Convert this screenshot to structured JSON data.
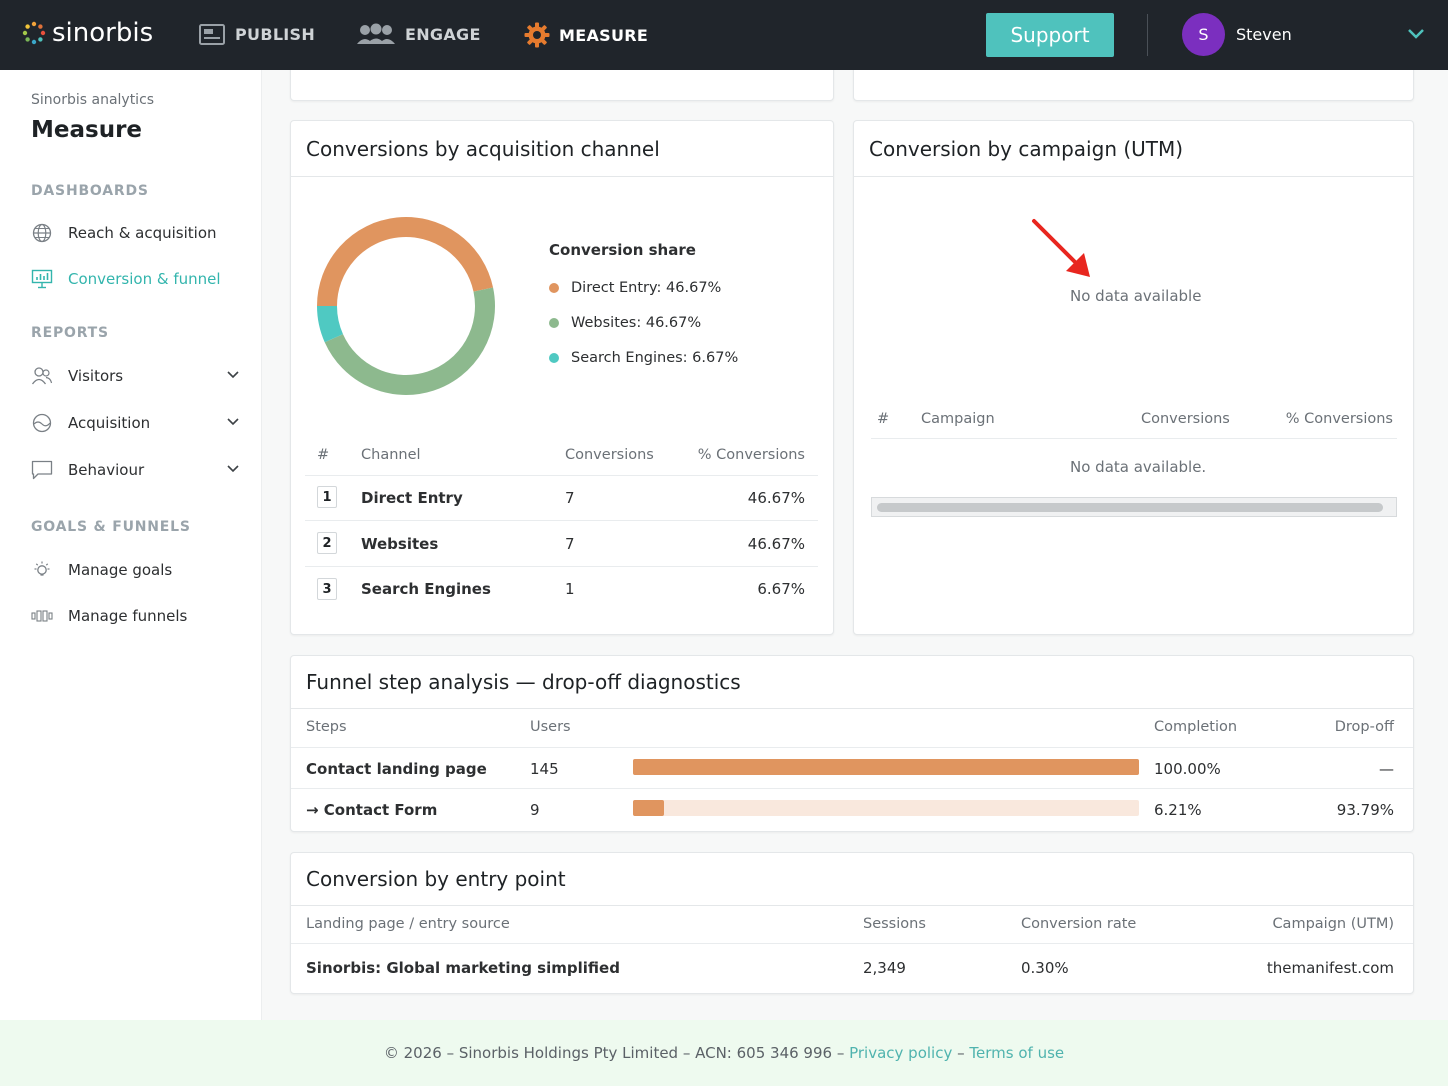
{
  "topbar": {
    "brand": "sinorbis",
    "nav": [
      {
        "label": "PUBLISH",
        "icon": "publish-icon"
      },
      {
        "label": "ENGAGE",
        "icon": "engage-icon"
      },
      {
        "label": "MEASURE",
        "icon": "measure-gear-icon"
      }
    ],
    "support_label": "Support",
    "user": {
      "initial": "S",
      "name": "Steven"
    }
  },
  "sidebar": {
    "caption": "Sinorbis analytics",
    "title": "Measure",
    "sections": {
      "dashboards": "DASHBOARDS",
      "reports": "REPORTS",
      "goals": "GOALS & FUNNELS"
    },
    "items": {
      "reach": "Reach & acquisition",
      "conversion": "Conversion & funnel",
      "visitors": "Visitors",
      "acquisition": "Acquisition",
      "behaviour": "Behaviour",
      "goals": "Manage goals",
      "funnels": "Manage funnels"
    }
  },
  "channel_card": {
    "title": "Conversions by acquisition channel",
    "legend_title": "Conversion share",
    "headers": [
      "#",
      "Channel",
      "Conversions",
      "% Conversions"
    ],
    "rows": [
      {
        "rank": "1",
        "channel": "Direct Entry",
        "conversions": "7",
        "pct": "46.67%"
      },
      {
        "rank": "2",
        "channel": "Websites",
        "conversions": "7",
        "pct": "46.67%"
      },
      {
        "rank": "3",
        "channel": "Search Engines",
        "conversions": "1",
        "pct": "6.67%"
      }
    ]
  },
  "chart_data": {
    "type": "pie",
    "title": "Conversion share",
    "categories": [
      "Direct Entry",
      "Websites",
      "Search Engines"
    ],
    "values": [
      46.67,
      46.67,
      6.67
    ],
    "legend": [
      "Direct Entry: 46.67%",
      "Websites: 46.67%",
      "Search Engines: 6.67%"
    ],
    "colors": [
      "#e0955f",
      "#8db98e",
      "#4fc9c2"
    ],
    "donut": true,
    "legend_position": "right"
  },
  "campaign_card": {
    "title": "Conversion by campaign (UTM)",
    "no_data": "No data available",
    "headers": [
      "#",
      "Campaign",
      "Conversions",
      "% Conversions"
    ],
    "table_no_data": "No data available."
  },
  "funnel_card": {
    "title": "Funnel step analysis — drop-off diagnostics",
    "headers": {
      "steps": "Steps",
      "users": "Users",
      "completion": "Completion",
      "dropoff": "Drop-off"
    },
    "rows": [
      {
        "step": "Contact landing page",
        "users": "145",
        "completion": "100.00%",
        "dropoff": "—",
        "completion_fraction": 1.0
      },
      {
        "step": "→ Contact Form",
        "users": "9",
        "completion": "6.21%",
        "dropoff": "93.79%",
        "completion_fraction": 0.0621
      }
    ],
    "bar_color": "#e0955f",
    "track_color": "#f9e8dd"
  },
  "entry_card": {
    "title": "Conversion by entry point",
    "headers": {
      "page": "Landing page / entry source",
      "sessions": "Sessions",
      "rate": "Conversion rate",
      "campaign": "Campaign (UTM)"
    },
    "row": {
      "page": "Sinorbis: Global marketing simplified",
      "sessions": "2,349",
      "rate": "0.30%",
      "campaign": "themanifest.com"
    }
  },
  "footer": {
    "text": "© 2026 – Sinorbis Holdings Pty Limited – ACN: 605 346 996 –",
    "privacy": "Privacy policy",
    "sep": "–",
    "terms": "Terms of use"
  }
}
